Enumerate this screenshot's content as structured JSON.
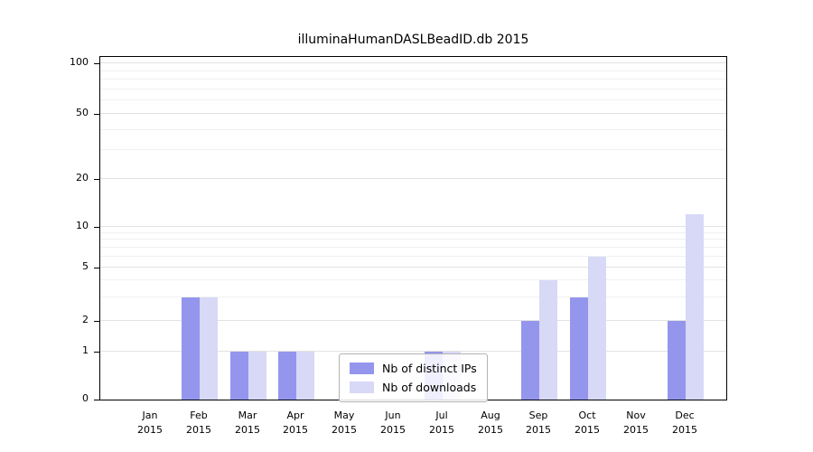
{
  "chart_data": {
    "type": "bar",
    "title": "illuminaHumanDASLBeadID.db 2015",
    "categories": [
      "Jan",
      "Feb",
      "Mar",
      "Apr",
      "May",
      "Jun",
      "Jul",
      "Aug",
      "Sep",
      "Oct",
      "Nov",
      "Dec"
    ],
    "year": "2015",
    "series": [
      {
        "name": "Nb of distinct IPs",
        "color": "#9496ed",
        "values": [
          0,
          3,
          1,
          1,
          0,
          0,
          1,
          0,
          2,
          3,
          0,
          2
        ]
      },
      {
        "name": "Nb of downloads",
        "color": "#d8d8f7",
        "values": [
          0,
          3,
          1,
          1,
          0,
          0,
          1,
          0,
          4,
          6,
          0,
          12
        ]
      }
    ],
    "yticks": [
      0,
      1,
      2,
      5,
      10,
      20,
      50,
      100
    ],
    "ylim": [
      0,
      100
    ],
    "yscale": "log",
    "grid": true,
    "legend_position": "bottom-center"
  }
}
